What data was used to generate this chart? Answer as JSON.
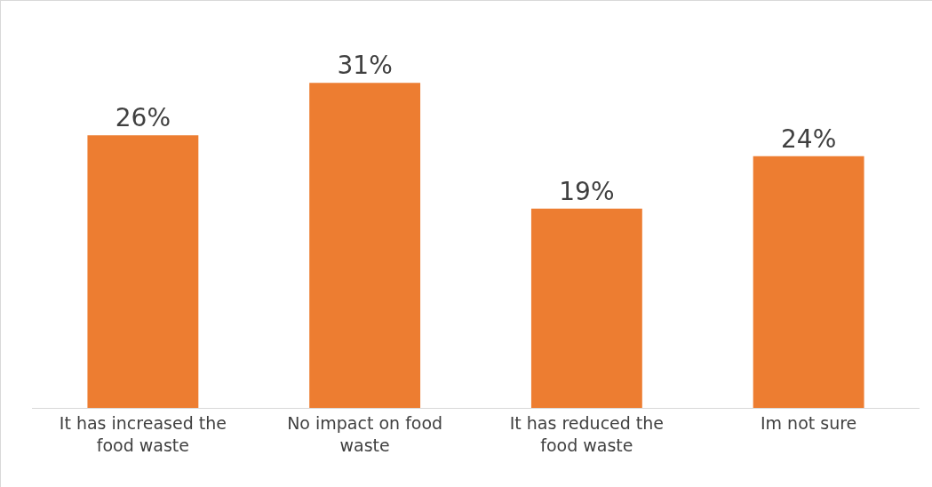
{
  "chart_data": {
    "type": "bar",
    "categories": [
      "It has increased the food waste",
      "No impact on food waste",
      "It has reduced the food waste",
      "Im not sure"
    ],
    "values": [
      26,
      31,
      19,
      24
    ],
    "value_labels": [
      "26%",
      "31%",
      "19%",
      "24%"
    ],
    "color": "#ed7d31",
    "grid": false,
    "legend": false
  }
}
